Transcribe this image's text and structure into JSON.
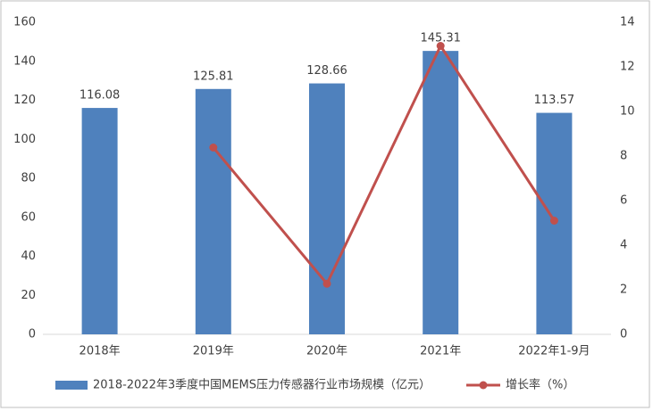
{
  "chart_data": {
    "type": "bar-line",
    "categories": [
      "2018年",
      "2019年",
      "2020年",
      "2021年",
      "2022年1-9月"
    ],
    "series": [
      {
        "name": "2018-2022年3季度中国MEMS压力传感器行业市场规模（亿元）",
        "type": "bar",
        "color": "#4f81bd",
        "values": [
          116.08,
          125.81,
          128.66,
          145.31,
          113.57
        ]
      },
      {
        "name": "增长率（%）",
        "type": "line",
        "axis": "y2",
        "color": "#c0504d",
        "values": [
          null,
          8.38,
          2.27,
          12.94,
          5.1
        ]
      }
    ],
    "ylim": [
      0,
      160
    ],
    "yticks": [
      0,
      20,
      40,
      60,
      80,
      100,
      120,
      140,
      160
    ],
    "y2lim": [
      0,
      14
    ],
    "y2ticks": [
      0,
      2,
      4,
      6,
      8,
      10,
      12,
      14
    ],
    "grid": false,
    "legend": "bottom"
  }
}
